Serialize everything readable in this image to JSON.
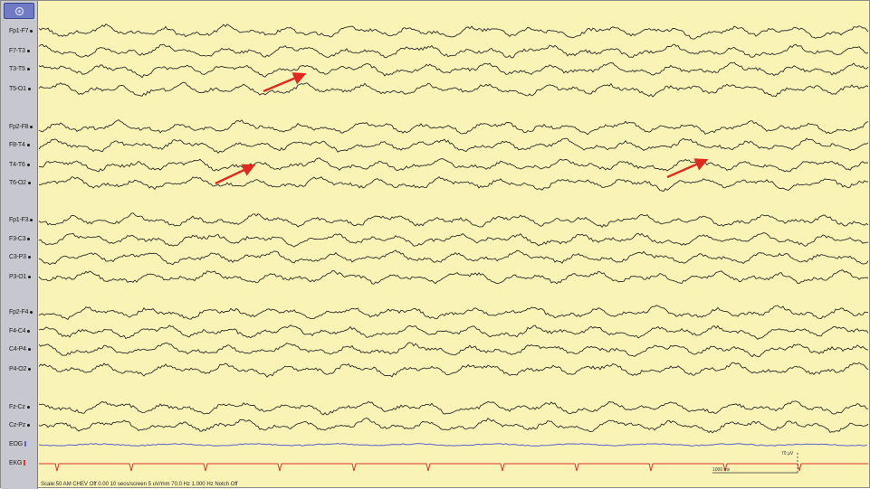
{
  "toolbar": {
    "menu_icon": "circle-menu-icon"
  },
  "channels": [
    {
      "label": "Fp1-F7"
    },
    {
      "label": "F7-T3"
    },
    {
      "label": "T3-T5"
    },
    {
      "label": "T5-O1"
    },
    {
      "label": "Fp2-F8"
    },
    {
      "label": "F8-T4"
    },
    {
      "label": "T4-T6"
    },
    {
      "label": "T6-O2"
    },
    {
      "label": "Fp1-F3"
    },
    {
      "label": "F3-C3"
    },
    {
      "label": "C3-P3"
    },
    {
      "label": "P3-O1"
    },
    {
      "label": "Fp2-F4"
    },
    {
      "label": "F4-C4"
    },
    {
      "label": "C4-P4"
    },
    {
      "label": "P4-O2"
    },
    {
      "label": "Fz-Cz"
    },
    {
      "label": "Cz-Pz"
    },
    {
      "label": "EOG"
    },
    {
      "label": "EKG"
    }
  ],
  "colors": {
    "background": "#f9f3b6",
    "trace": "#2d2d2d",
    "eog": "#5a62c8",
    "ekg": "#e0302a",
    "arrow": "#e02a1f"
  },
  "annotations": [
    {
      "type": "arrow",
      "name": "arrow-t3-t5"
    },
    {
      "type": "arrow",
      "name": "arrow-t4-t6-left"
    },
    {
      "type": "arrow",
      "name": "arrow-t4-t6-right"
    }
  ],
  "scale": {
    "amplitude_label": "70 µV",
    "time_label": "1000 ms"
  },
  "status_bar": "Scale:50 AM CHEV Off 0.00 10 secs/screen 5 uV/mm 70.0 Hz 1.000 Hz Notch Off"
}
